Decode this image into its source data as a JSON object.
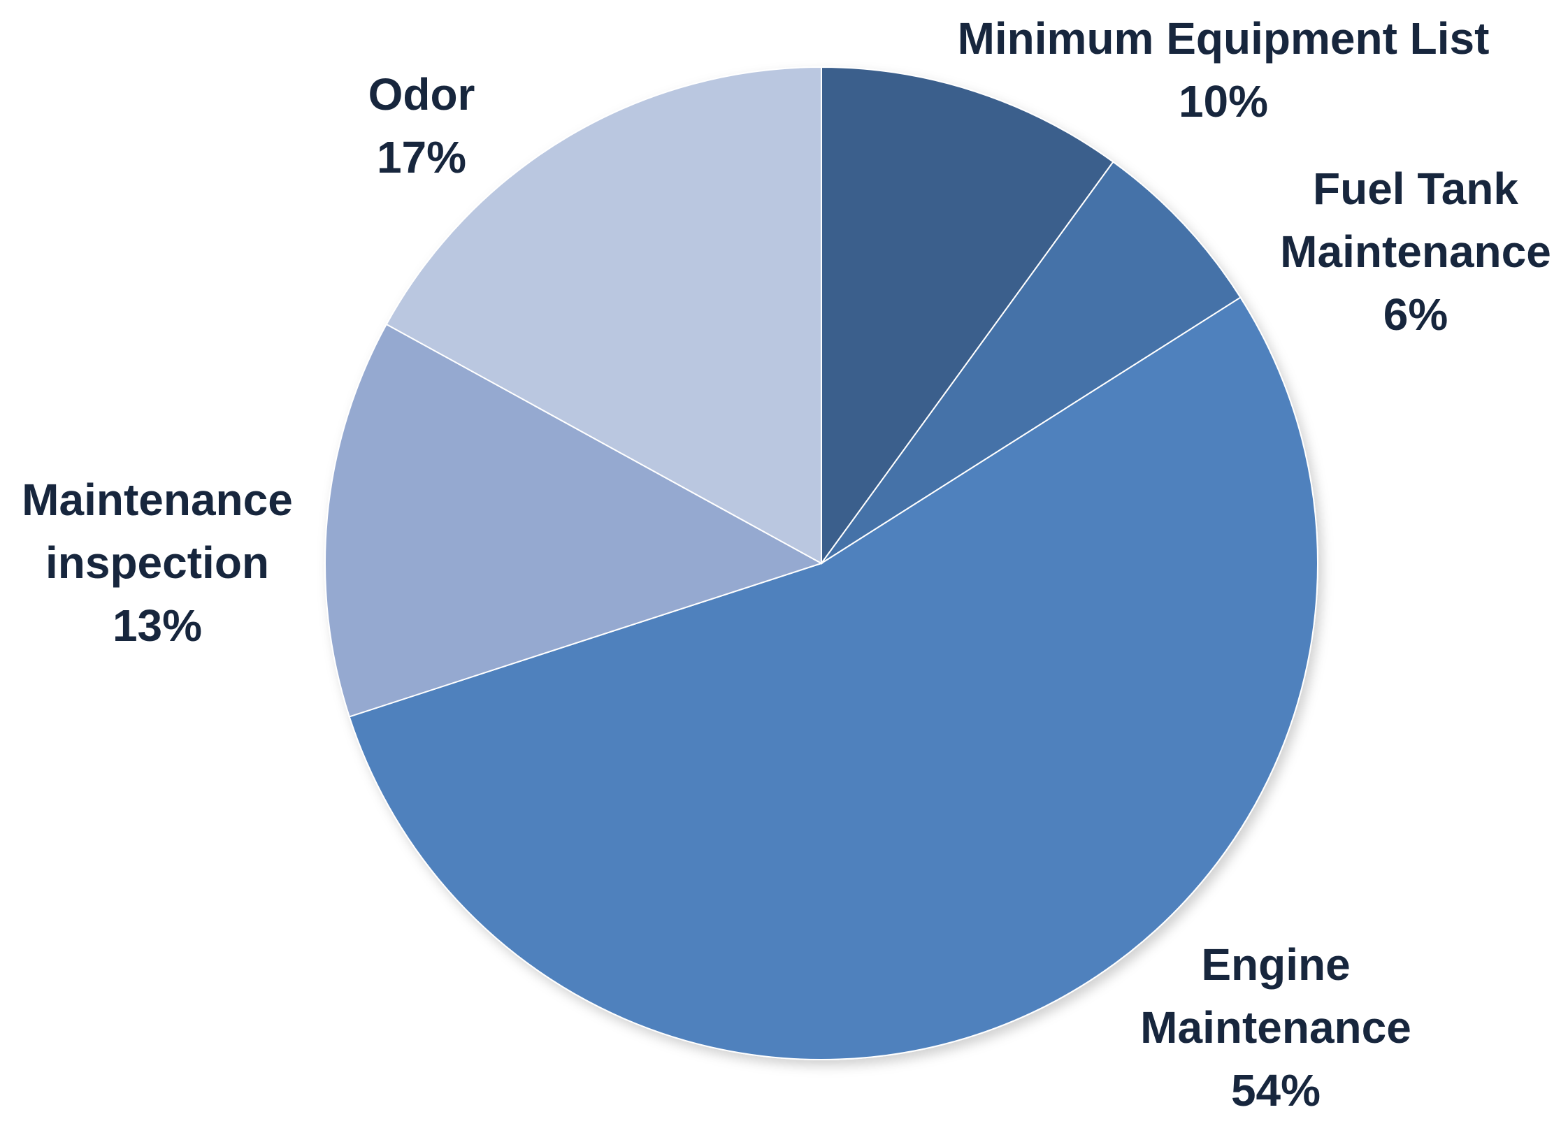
{
  "chart_data": {
    "type": "pie",
    "title": "",
    "start_angle_deg": 0,
    "direction": "clockwise",
    "slices": [
      {
        "label_lines": [
          "Minimum Equipment List"
        ],
        "pct_label": "10%",
        "value": 10,
        "color": "#3b5e8c"
      },
      {
        "label_lines": [
          "Fuel Tank",
          "Maintenance"
        ],
        "pct_label": "6%",
        "value": 6,
        "color": "#4472a8"
      },
      {
        "label_lines": [
          "Engine",
          "Maintenance"
        ],
        "pct_label": "54%",
        "value": 54,
        "color": "#4f81bd"
      },
      {
        "label_lines": [
          "Maintenance",
          "inspection"
        ],
        "pct_label": "13%",
        "value": 13,
        "color": "#95a9d0"
      },
      {
        "label_lines": [
          "Odor"
        ],
        "pct_label": "17%",
        "value": 17,
        "color": "#bac7e0"
      }
    ],
    "legend": "none",
    "label_color": "#17263d"
  }
}
